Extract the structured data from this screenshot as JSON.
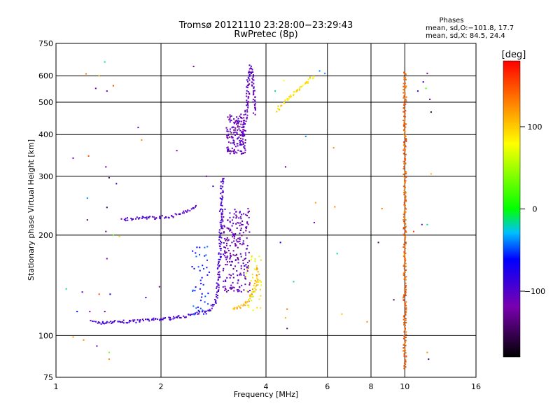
{
  "chart_data": {
    "type": "scatter",
    "title": "Tromsø 20121110 23:28:00−23:29:43",
    "subtitle": "RwPretec (8p)",
    "xlabel": "Frequency [MHz]",
    "ylabel": "Stationary phase Virtual Height [km]",
    "x_scale": "log",
    "y_scale": "log",
    "xlim": [
      1,
      16
    ],
    "ylim": [
      75,
      750
    ],
    "x_ticks": [
      1,
      2,
      4,
      6,
      8,
      10,
      16
    ],
    "x_tick_labels": [
      "1",
      "2",
      "4",
      "6",
      "8",
      "10",
      "16"
    ],
    "y_ticks": [
      75,
      100,
      200,
      300,
      400,
      500,
      600,
      750
    ],
    "y_tick_labels": [
      "75",
      "100",
      "200",
      "300",
      "400",
      "500",
      "600",
      "750"
    ],
    "grid": true,
    "stats": {
      "heading": "Phases",
      "line_o": "mean, sd,O:−101.8, 17.7",
      "line_x": "mean, sd,X:  84.5, 24.4"
    },
    "colorbar": {
      "label": "[deg]",
      "range": [
        -180,
        180
      ],
      "tick_values": [
        100,
        0,
        -100
      ],
      "tick_labels": [
        "100",
        "0",
        "−100"
      ]
    },
    "echo_traces": [
      {
        "name": "",
        "phase": -95,
        "x": [
          1.27,
          1.35,
          1.45,
          1.6,
          1.8,
          2.0,
          2.2,
          2.4,
          2.6,
          2.75,
          2.85,
          2.9,
          2.94,
          2.97,
          3.0
        ],
        "y": [
          110,
          109,
          110,
          110,
          111,
          112,
          113,
          115,
          117,
          120,
          125,
          135,
          160,
          220,
          300
        ]
      },
      {
        "name": "",
        "phase": -100,
        "x": [
          1.55,
          1.7,
          1.85,
          2.0,
          2.15,
          2.3,
          2.45,
          2.55
        ],
        "y": [
          222,
          225,
          225,
          226,
          228,
          232,
          240,
          246
        ]
      },
      {
        "name": "",
        "phase": -108,
        "x": [
          3.35,
          3.4,
          3.45,
          3.5,
          3.52,
          3.55,
          3.55,
          3.58,
          3.62,
          3.66,
          3.72
        ],
        "y": [
          370,
          390,
          420,
          450,
          480,
          520,
          560,
          600,
          640,
          600,
          460
        ]
      },
      {
        "name": "",
        "phase": 110,
        "x": [
          3.2,
          3.35,
          3.5,
          3.6,
          3.68,
          3.72,
          3.75,
          3.78,
          3.8
        ],
        "y": [
          120,
          122,
          125,
          130,
          135,
          140,
          145,
          150,
          160
        ]
      },
      {
        "name": "",
        "phase": 95,
        "x": [
          4.3,
          4.5,
          4.7,
          4.9,
          5.1,
          5.3,
          5.5
        ],
        "y": [
          470,
          500,
          520,
          540,
          560,
          580,
          600
        ]
      },
      {
        "name": "",
        "phase": 140,
        "x": [
          10.0,
          10.0,
          10.0,
          10.0,
          10.0,
          10.0,
          10.0,
          10.0
        ],
        "y": [
          80,
          120,
          180,
          240,
          320,
          420,
          520,
          620
        ]
      }
    ],
    "echo_clusters": [
      {
        "name": "",
        "phase": -115,
        "xrange": [
          3.0,
          3.6
        ],
        "yrange": [
          135,
          240
        ],
        "count": 230
      },
      {
        "name": "",
        "phase": -112,
        "xrange": [
          3.08,
          3.5
        ],
        "yrange": [
          350,
          460
        ],
        "count": 140
      },
      {
        "name": "",
        "phase": -60,
        "xrange": [
          2.45,
          2.75
        ],
        "yrange": [
          115,
          185
        ],
        "count": 45
      },
      {
        "name": "",
        "phase": 80,
        "xrange": [
          3.5,
          3.9
        ],
        "yrange": [
          118,
          175
        ],
        "count": 40
      }
    ],
    "sparse_points": [
      {
        "x": 1.22,
        "y": 608,
        "phase": 130
      },
      {
        "x": 1.33,
        "y": 600,
        "phase": 110
      },
      {
        "x": 1.38,
        "y": 660,
        "phase": -20
      },
      {
        "x": 1.4,
        "y": 540,
        "phase": -100
      },
      {
        "x": 1.46,
        "y": 560,
        "phase": 160
      },
      {
        "x": 1.3,
        "y": 550,
        "phase": -110
      },
      {
        "x": 1.12,
        "y": 340,
        "phase": -110
      },
      {
        "x": 1.24,
        "y": 345,
        "phase": 150
      },
      {
        "x": 1.39,
        "y": 320,
        "phase": -130
      },
      {
        "x": 1.42,
        "y": 297,
        "phase": -150
      },
      {
        "x": 1.49,
        "y": 285,
        "phase": -80
      },
      {
        "x": 1.23,
        "y": 258,
        "phase": -40
      },
      {
        "x": 1.4,
        "y": 242,
        "phase": -150
      },
      {
        "x": 1.23,
        "y": 222,
        "phase": -150
      },
      {
        "x": 1.39,
        "y": 205,
        "phase": -140
      },
      {
        "x": 1.46,
        "y": 200,
        "phase": 30
      },
      {
        "x": 1.52,
        "y": 198,
        "phase": 100
      },
      {
        "x": 1.4,
        "y": 170,
        "phase": -120
      },
      {
        "x": 1.07,
        "y": 138,
        "phase": -20
      },
      {
        "x": 1.19,
        "y": 135,
        "phase": -110
      },
      {
        "x": 1.33,
        "y": 133,
        "phase": 150
      },
      {
        "x": 1.43,
        "y": 133,
        "phase": -60
      },
      {
        "x": 1.15,
        "y": 118,
        "phase": -60
      },
      {
        "x": 1.25,
        "y": 118,
        "phase": -120
      },
      {
        "x": 1.38,
        "y": 118,
        "phase": -130
      },
      {
        "x": 1.12,
        "y": 99,
        "phase": 120
      },
      {
        "x": 1.2,
        "y": 97,
        "phase": 130
      },
      {
        "x": 1.31,
        "y": 93,
        "phase": -110
      },
      {
        "x": 1.42,
        "y": 89,
        "phase": 40
      },
      {
        "x": 1.42,
        "y": 85,
        "phase": 130
      },
      {
        "x": 1.72,
        "y": 420,
        "phase": -110
      },
      {
        "x": 1.76,
        "y": 385,
        "phase": 130
      },
      {
        "x": 2.48,
        "y": 640,
        "phase": -130
      },
      {
        "x": 2.22,
        "y": 358,
        "phase": -110
      },
      {
        "x": 2.7,
        "y": 300,
        "phase": -110
      },
      {
        "x": 2.82,
        "y": 280,
        "phase": -60
      },
      {
        "x": 1.98,
        "y": 140,
        "phase": -130
      },
      {
        "x": 1.81,
        "y": 130,
        "phase": -80
      },
      {
        "x": 4.25,
        "y": 540,
        "phase": -20
      },
      {
        "x": 4.5,
        "y": 580,
        "phase": 80
      },
      {
        "x": 4.55,
        "y": 320,
        "phase": -140
      },
      {
        "x": 4.4,
        "y": 190,
        "phase": -60
      },
      {
        "x": 4.8,
        "y": 145,
        "phase": -20
      },
      {
        "x": 4.6,
        "y": 120,
        "phase": 140
      },
      {
        "x": 4.55,
        "y": 113,
        "phase": 110
      },
      {
        "x": 4.6,
        "y": 105,
        "phase": -140
      },
      {
        "x": 5.2,
        "y": 395,
        "phase": -40
      },
      {
        "x": 5.55,
        "y": 250,
        "phase": 120
      },
      {
        "x": 5.5,
        "y": 218,
        "phase": -110
      },
      {
        "x": 5.7,
        "y": 620,
        "phase": -40
      },
      {
        "x": 5.9,
        "y": 610,
        "phase": -40
      },
      {
        "x": 6.25,
        "y": 365,
        "phase": 130
      },
      {
        "x": 6.3,
        "y": 243,
        "phase": 130
      },
      {
        "x": 6.4,
        "y": 176,
        "phase": -20
      },
      {
        "x": 6.6,
        "y": 116,
        "phase": 110
      },
      {
        "x": 7.8,
        "y": 110,
        "phase": 130
      },
      {
        "x": 8.4,
        "y": 190,
        "phase": -150
      },
      {
        "x": 8.6,
        "y": 240,
        "phase": 130
      },
      {
        "x": 9.3,
        "y": 128,
        "phase": -150
      },
      {
        "x": 10.9,
        "y": 540,
        "phase": -90
      },
      {
        "x": 11.3,
        "y": 575,
        "phase": -90
      },
      {
        "x": 11.6,
        "y": 610,
        "phase": -130
      },
      {
        "x": 11.5,
        "y": 550,
        "phase": 20
      },
      {
        "x": 11.8,
        "y": 510,
        "phase": -130
      },
      {
        "x": 11.9,
        "y": 467,
        "phase": -160
      },
      {
        "x": 11.2,
        "y": 215,
        "phase": -110
      },
      {
        "x": 11.6,
        "y": 215,
        "phase": -20
      },
      {
        "x": 11.9,
        "y": 305,
        "phase": 110
      },
      {
        "x": 11.6,
        "y": 89,
        "phase": 120
      },
      {
        "x": 11.7,
        "y": 85,
        "phase": -150
      },
      {
        "x": 10.6,
        "y": 205,
        "phase": 160
      }
    ]
  }
}
